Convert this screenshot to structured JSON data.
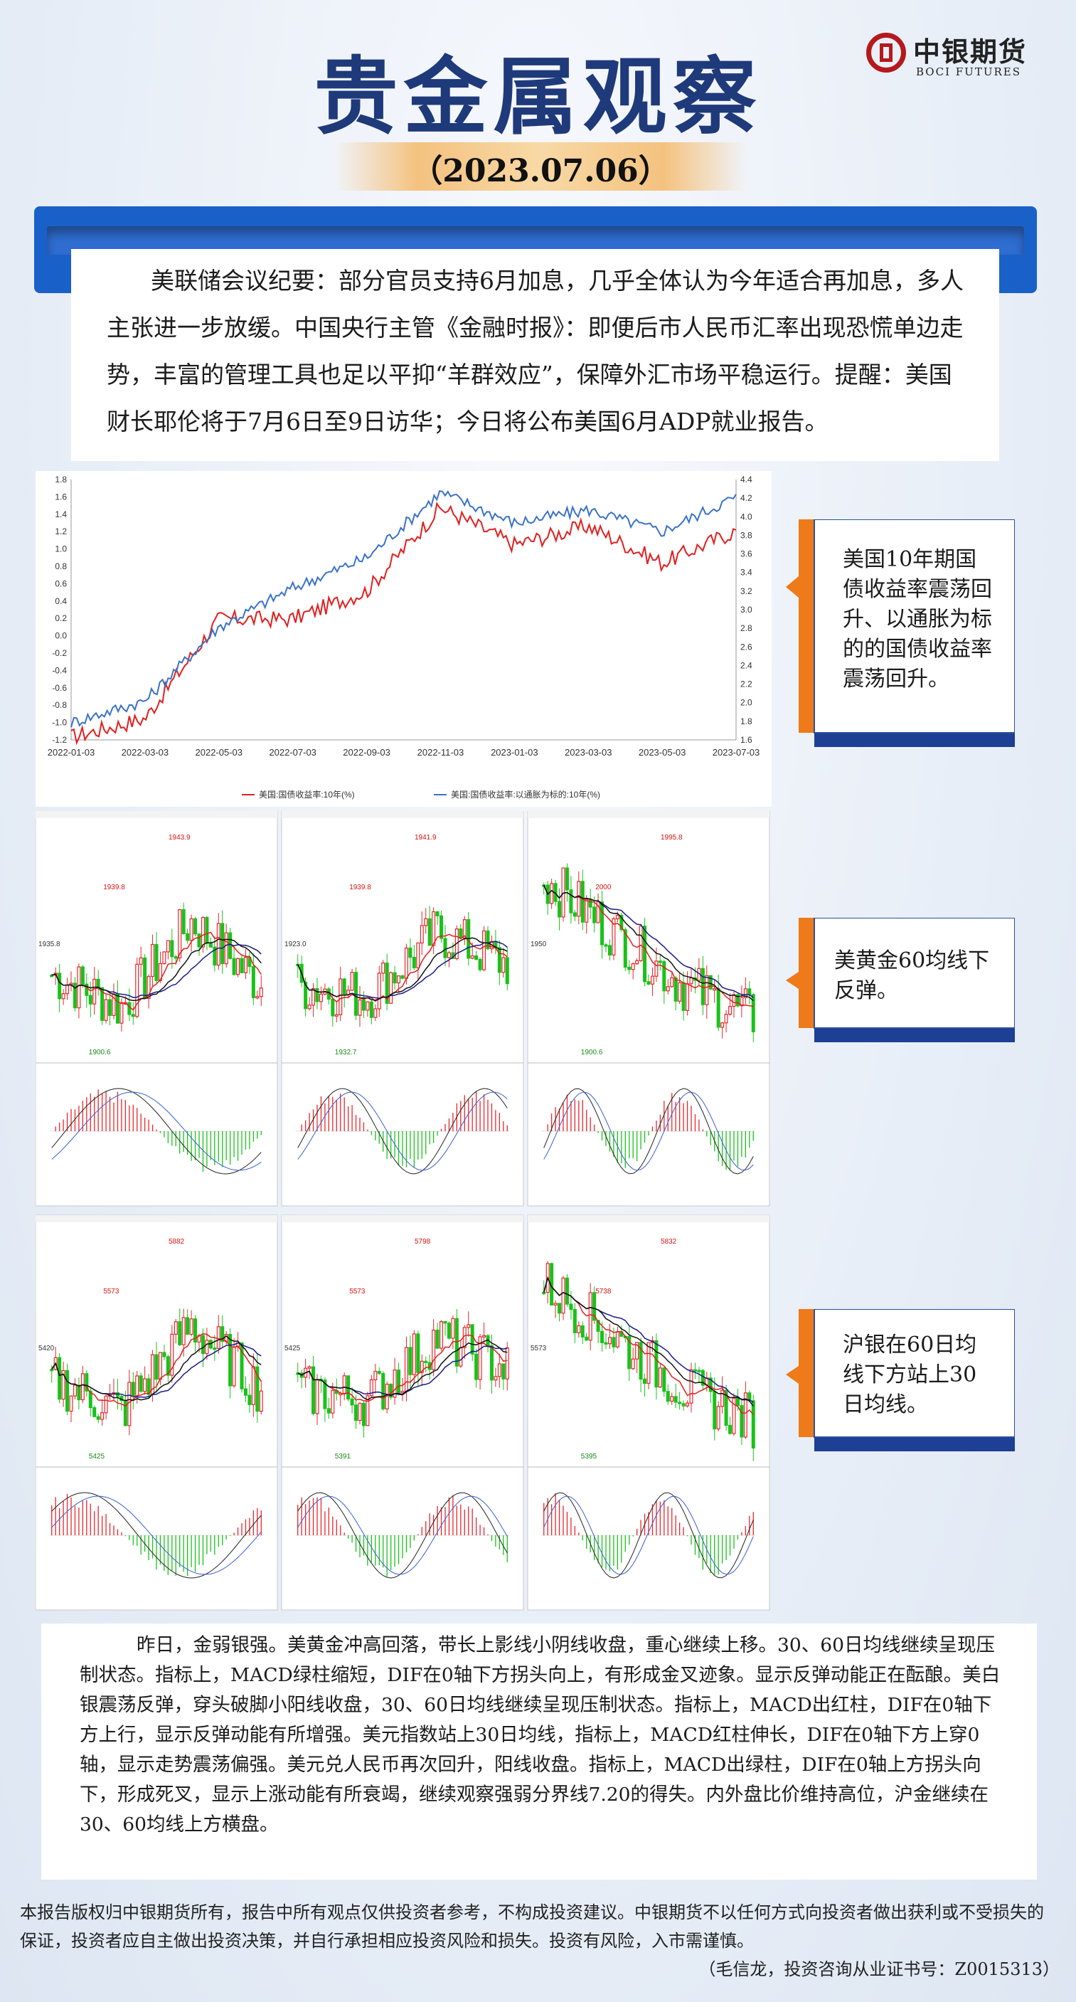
{
  "header": {
    "title": "贵金属观察",
    "date": "（2023.07.06）",
    "logo": {
      "cn": "中银期货",
      "en": "BOCI FUTURES"
    }
  },
  "intro": "美联储会议纪要：部分官员支持6月加息，几乎全体认为今年适合再加息，多人主张进一步放缓。中国央行主管《金融时报》：即便后市人民币汇率出现恐慌单边走势，丰富的管理工具也足以平抑“羊群效应”，保障外汇市场平稳运行。提醒：美国财长耶伦将于7月6日至9日访华；今日将公布美国6月ADP就业报告。",
  "callouts": [
    "美国10年期国债收益率震荡回升、以通胀为标的的国债收益率震荡回升。",
    "美黄金60均线下反弹。",
    "沪银在60日均线下方站上30日均线。"
  ],
  "chart_data": {
    "type": "line",
    "title": "",
    "x": [
      "2022-01-03",
      "2022-03-03",
      "2022-05-03",
      "2022-07-03",
      "2022-09-03",
      "2022-11-03",
      "2023-01-03",
      "2023-03-03",
      "2023-05-03",
      "2023-07-03"
    ],
    "y_left": {
      "ylim": [
        -1.2,
        1.8
      ],
      "ticks": [
        "-1.2",
        "-1.0",
        "-0.8",
        "-0.6",
        "-0.4",
        "-0.2",
        "0.0",
        "0.2",
        "0.4",
        "0.6",
        "0.8",
        "1.0",
        "1.2",
        "1.4",
        "1.6",
        "1.8"
      ]
    },
    "y_right": {
      "ylim": [
        1.6,
        4.4
      ],
      "ticks": [
        "1.6",
        "1.8",
        "2.0",
        "2.2",
        "2.4",
        "2.6",
        "2.8",
        "3.0",
        "3.2",
        "3.4",
        "3.6",
        "3.8",
        "4.0",
        "4.2",
        "4.4"
      ]
    },
    "series": [
      {
        "name": "美国:国债收益率:10年(%)",
        "axis": "right",
        "color": "#e02020",
        "values": [
          1.63,
          1.83,
          2.9,
          2.9,
          3.2,
          4.1,
          3.7,
          3.9,
          3.5,
          3.85
        ]
      },
      {
        "name": "美国:国债收益率:以通胀为标的:10年(%)",
        "axis": "left",
        "color": "#3a72c8",
        "values": [
          -1.0,
          -0.75,
          0.1,
          0.55,
          0.9,
          1.65,
          1.3,
          1.45,
          1.2,
          1.6
        ]
      }
    ],
    "grid": false,
    "legend": "bottom"
  },
  "gold_panels": [
    {
      "hi": "1943.9",
      "mid1": "1939.8",
      "mid2": "1935.8",
      "lo": "1900.6"
    },
    {
      "hi": "1941.9",
      "mid1": "1939.8",
      "mid2": "1923.0",
      "lo": "1932.7"
    },
    {
      "hi": "1995.8",
      "mid1": "2000",
      "mid2": "1950",
      "lo": "1900.6"
    }
  ],
  "silver_panels": [
    {
      "hi": "5882",
      "mid1": "5573",
      "mid2": "5420",
      "lo": "5425"
    },
    {
      "hi": "5798",
      "mid1": "5573",
      "mid2": "5425",
      "lo": "5391"
    },
    {
      "hi": "5832",
      "mid1": "5738",
      "mid2": "5573",
      "lo": "5395"
    }
  ],
  "commentary": "昨日，金弱银强。美黄金冲高回落，带长上影线小阴线收盘，重心继续上移。30、60日均线继续呈现压制状态。指标上，MACD绿柱缩短，DIF在0轴下方拐头向上，有形成金叉迹象。显示反弹动能正在酝酿。美白银震荡反弹，穿头破脚小阳线收盘，30、60日均线继续呈现压制状态。指标上，MACD出红柱，DIF在0轴下方上行，显示反弹动能有所增强。美元指数站上30日均线，指标上，MACD红柱伸长，DIF在0轴下方上穿0轴，显示走势震荡偏强。美元兑人民币再次回升，阳线收盘。指标上，MACD出绿柱，DIF在0轴上方拐头向下，形成死叉，显示上涨动能有所衰竭，继续观察强弱分界线7.20的得失。内外盘比价维持高位，沪金继续在30、60均线上方横盘。",
  "footer": {
    "disclaimer": "本报告版权归中银期货所有，报告中所有观点仅供投资者参考，不构成投资建议。中银期货不以任何方式向投资者做出获利或不受损失的保证，投资者应自主做出投资决策，并自行承担相应投资风险和损失。投资有风险，入市需谨慎。",
    "author": "（毛信龙，投资咨询从业证书号：Z0015313）"
  }
}
